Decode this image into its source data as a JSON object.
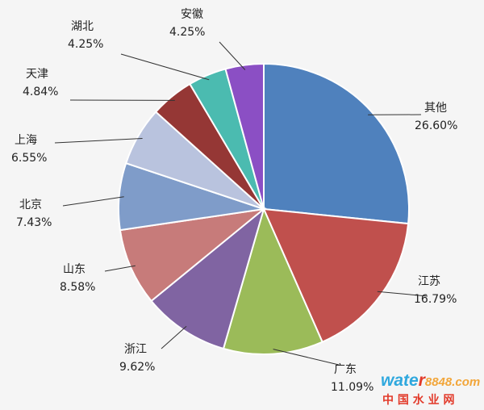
{
  "chart_data": {
    "type": "pie",
    "slices": [
      {
        "label": "其他",
        "value": 26.6,
        "text": "26.60%",
        "color": "#4F81BD"
      },
      {
        "label": "江苏",
        "value": 16.79,
        "text": "16.79%",
        "color": "#C0504D"
      },
      {
        "label": "广东",
        "value": 11.09,
        "text": "11.09%",
        "color": "#9BBB59"
      },
      {
        "label": "浙江",
        "value": 9.62,
        "text": "9.62%",
        "color": "#8064A2"
      },
      {
        "label": "山东",
        "value": 8.58,
        "text": "8.58%",
        "color": "#C77B7A"
      },
      {
        "label": "北京",
        "value": 7.43,
        "text": "7.43%",
        "color": "#7F9CC9"
      },
      {
        "label": "上海",
        "value": 6.55,
        "text": "6.55%",
        "color": "#B9C3DE"
      },
      {
        "label": "天津",
        "value": 4.84,
        "text": "4.84%",
        "color": "#953735"
      },
      {
        "label": "湖北",
        "value": 4.25,
        "text": "4.25%",
        "color": "#4BBBB0"
      },
      {
        "label": "安徽",
        "value": 4.25,
        "text": "4.25%",
        "color": "#8B4FC4"
      }
    ]
  },
  "watermark": {
    "brand_prefix": "wate",
    "brand_r": "r",
    "brand_num": "8848",
    "brand_suffix": ".com",
    "chinese": "中 国 水 业 网"
  }
}
